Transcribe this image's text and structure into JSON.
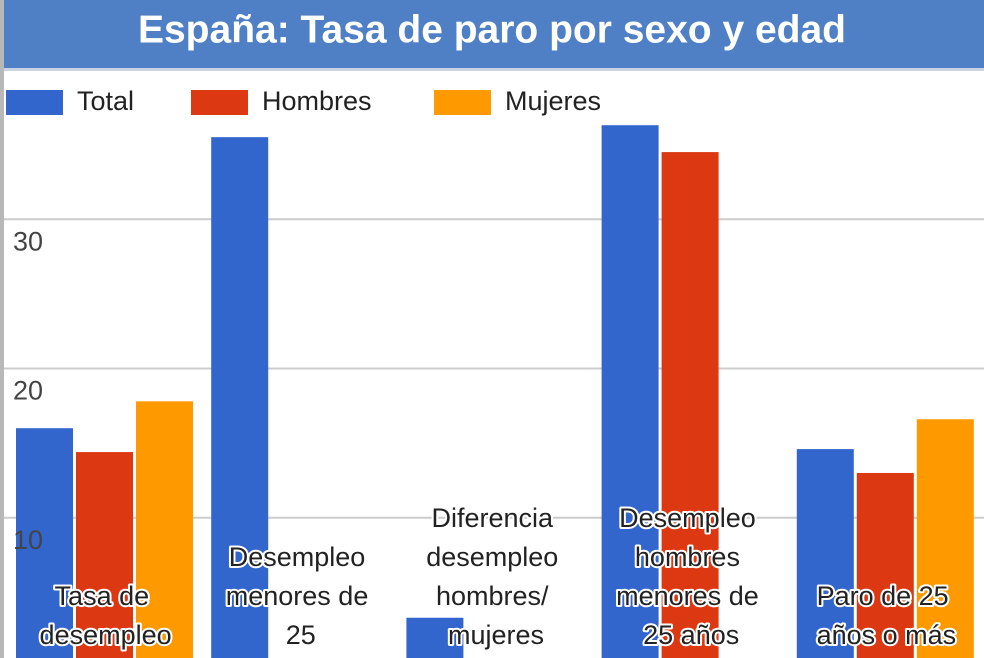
{
  "chart_data": {
    "type": "bar",
    "title": "España: Tasa de paro por sexo y edad",
    "categories": [
      "Tasa de desempleo",
      "Desempleo menores de 25",
      "Diferencia desempleo hombres/ mujeres",
      "Desempleo hombres menores de 25 años",
      "Paro de 25 años o más"
    ],
    "series": [
      {
        "name": "Total",
        "color": "#3366cc",
        "values": [
          16.0,
          35.5,
          3.3,
          36.3,
          14.6
        ]
      },
      {
        "name": "Hombres",
        "color": "#dc3912",
        "values": [
          14.4,
          null,
          null,
          34.5,
          13.0
        ]
      },
      {
        "name": "Mujeres",
        "color": "#ff9900",
        "values": [
          17.8,
          null,
          null,
          null,
          16.6
        ]
      }
    ],
    "ylim": [
      0,
      40
    ],
    "yticks": [
      10,
      20,
      30
    ],
    "grid": true,
    "legend": "top"
  }
}
